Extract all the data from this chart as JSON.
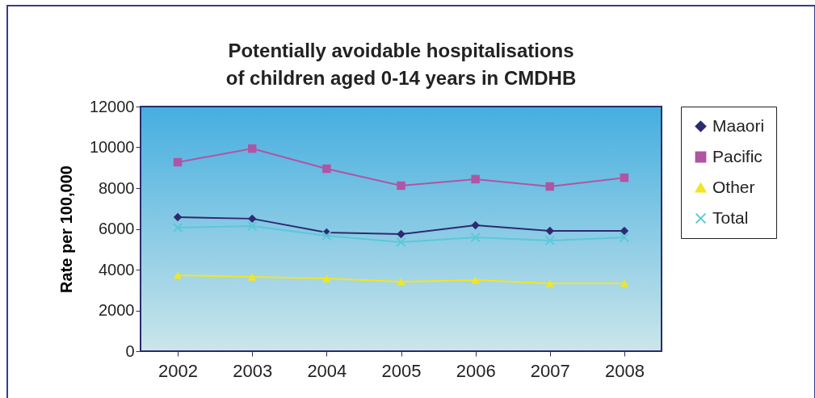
{
  "chart_data": {
    "type": "line",
    "title": "Potentially avoidable hospitalisations\nof children aged 0-14 years in CMDHB",
    "ylabel": "Rate per 100,000",
    "categories": [
      "2002",
      "2003",
      "2004",
      "2005",
      "2006",
      "2007",
      "2008"
    ],
    "series": [
      {
        "name": "Maaori",
        "color": "#2e2a72",
        "marker": "diamond",
        "values": [
          6570,
          6500,
          5820,
          5740,
          6180,
          5900,
          5900
        ]
      },
      {
        "name": "Pacific",
        "color": "#b055a3",
        "marker": "square",
        "values": [
          9270,
          9940,
          8950,
          8120,
          8440,
          8080,
          8510
        ]
      },
      {
        "name": "Other",
        "color": "#f0e527",
        "marker": "triangle",
        "values": [
          3720,
          3640,
          3560,
          3410,
          3490,
          3330,
          3330
        ]
      },
      {
        "name": "Total",
        "color": "#5bc8d9",
        "marker": "cross",
        "values": [
          6060,
          6140,
          5660,
          5350,
          5580,
          5430,
          5580
        ]
      }
    ],
    "ylim": [
      0,
      12000
    ],
    "yticks": [
      0,
      2000,
      4000,
      6000,
      8000,
      10000,
      12000
    ],
    "grid": false,
    "legend": "right"
  }
}
